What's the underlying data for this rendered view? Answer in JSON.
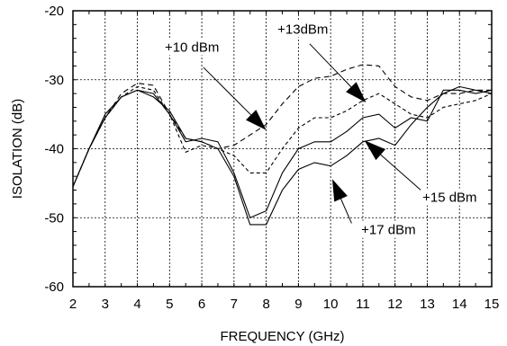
{
  "chart_data": {
    "type": "line",
    "xlabel": "FREQUENCY (GHz)",
    "ylabel": "ISOLATION (dB)",
    "xlim": [
      2,
      15
    ],
    "ylim": [
      -60,
      -20
    ],
    "xticks": [
      "2",
      "3",
      "4",
      "5",
      "6",
      "7",
      "8",
      "9",
      "10",
      "11",
      "12",
      "13",
      "14",
      "15"
    ],
    "yticks": [
      "-20",
      "-30",
      "-40",
      "-50",
      "-60"
    ],
    "grid": true,
    "legend": "none",
    "series": [
      {
        "dash": "6,4",
        "x": [
          2,
          2.5,
          3,
          3.5,
          4,
          4.5,
          5,
          5.5,
          6,
          6.5,
          7,
          7.5,
          8,
          8.5,
          9,
          9.5,
          10,
          10.5,
          11,
          11.5,
          12,
          12.5,
          13,
          13.5,
          14,
          14.5,
          15
        ],
        "y": [
          -45.5,
          -40,
          -35.5,
          -32,
          -30.5,
          -30.8,
          -35,
          -38.5,
          -39,
          -40,
          -39.5,
          -38,
          -36.5,
          -33.5,
          -31,
          -29.8,
          -29.5,
          -28.5,
          -27.8,
          -28,
          -31,
          -32.5,
          -33,
          -32,
          -32,
          -31.5,
          -31.5
        ]
      },
      {
        "dash": "4,3",
        "x": [
          2,
          2.5,
          3,
          3.5,
          4,
          4.5,
          5,
          5.5,
          6,
          6.5,
          7,
          7.5,
          8,
          8.5,
          9,
          9.5,
          10,
          10.5,
          11,
          11.5,
          12,
          12.5,
          13,
          13.5,
          14,
          14.5,
          15
        ],
        "y": [
          -45.5,
          -40,
          -35.5,
          -32.5,
          -31,
          -31.5,
          -35,
          -40.5,
          -39.5,
          -40,
          -41,
          -43.5,
          -43.5,
          -40,
          -37,
          -35.5,
          -35.5,
          -34.5,
          -33,
          -32,
          -33.5,
          -35,
          -35.5,
          -34,
          -33.5,
          -33,
          -32
        ]
      },
      {
        "dash": "",
        "x": [
          2,
          2.5,
          3,
          3.5,
          4,
          4.5,
          5,
          5.5,
          6,
          6.5,
          7,
          7.5,
          8,
          8.5,
          9,
          9.5,
          10,
          10.5,
          11,
          11.5,
          12,
          12.5,
          13,
          13.5,
          14,
          14.5,
          15
        ],
        "y": [
          -45.5,
          -40,
          -35.5,
          -32.5,
          -31.5,
          -32,
          -35,
          -39,
          -38.5,
          -39,
          -43.5,
          -50,
          -49,
          -43.5,
          -40,
          -39,
          -39,
          -37.5,
          -35.5,
          -35,
          -37,
          -35.5,
          -36,
          -31.5,
          -31.5,
          -32,
          -31.5
        ]
      },
      {
        "dash": "",
        "x": [
          2,
          2.5,
          3,
          3.5,
          4,
          4.5,
          5,
          5.5,
          6,
          6.5,
          7,
          7.5,
          8,
          8.5,
          9,
          9.5,
          10,
          10.5,
          11,
          11.5,
          12,
          12.5,
          13,
          13.5,
          14,
          14.5,
          15
        ],
        "y": [
          -45.5,
          -40,
          -35,
          -32.5,
          -31.5,
          -32.5,
          -34.5,
          -38.5,
          -39,
          -40,
          -44,
          -51,
          -51,
          -46,
          -43,
          -42,
          -42.5,
          -41,
          -39,
          -38.5,
          -39.5,
          -36.5,
          -34,
          -32,
          -31,
          -31.5,
          -32
        ]
      }
    ],
    "annotations": [
      {
        "text": "+10 dBm",
        "tx": 4.85,
        "ty": -25.9,
        "ax1": 6.05,
        "ay1": -28.2,
        "ax2": 8.0,
        "ay2": -37.3
      },
      {
        "text": "+13dBm",
        "tx": 8.35,
        "ty": -23.3,
        "ax1": 9.35,
        "ay1": -24.8,
        "ax2": 11.1,
        "ay2": -33.3
      },
      {
        "text": "+15 dBm",
        "tx": 12.85,
        "ty": -47.7,
        "ax1": 12.85,
        "ay1": -46.2,
        "ax2": 11.05,
        "ay2": -38.8
      },
      {
        "text": "+17 dBm",
        "tx": 10.95,
        "ty": -52.4,
        "ax1": 10.65,
        "ay1": -50.8,
        "ax2": 10.05,
        "ay2": -44.4
      }
    ]
  }
}
